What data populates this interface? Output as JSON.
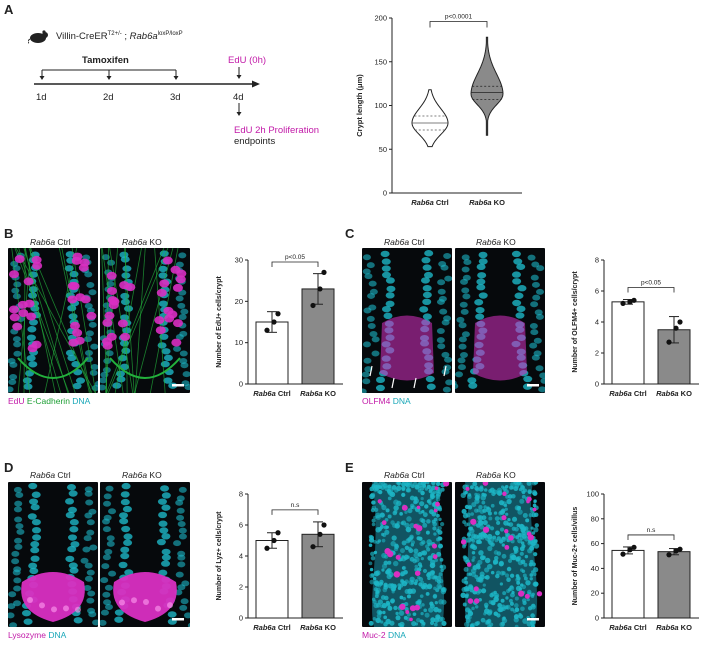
{
  "panels": {
    "A": {
      "label": "A",
      "genotype": "Villin-CreER",
      "genotype_sup": "T2+/-",
      "sep": " ; ",
      "allele": "Rab6a",
      "allele_sup": "loxP/loxP",
      "tamoxifen": "Tamoxifen",
      "edu": "EdU (0h)",
      "days": [
        "1d",
        "2d",
        "3d",
        "4d"
      ],
      "proliferation": "EdU 2h Proliferation",
      "endpoints": "endpoints"
    },
    "B": {
      "label": "B",
      "cap_a": "EdU",
      "cap_b": "E-Cadherin",
      "cap_c": "DNA"
    },
    "C": {
      "label": "C",
      "cap_a": "OLFM4",
      "cap_c": "DNA"
    },
    "D": {
      "label": "D",
      "cap_a": "Lysozyme",
      "cap_c": "DNA"
    },
    "E": {
      "label": "E",
      "cap_a": "Muc-2",
      "cap_c": "DNA"
    }
  },
  "micro_titles": {
    "gene": "Rab6a",
    "ctrl": " Ctrl",
    "ko": " KO"
  },
  "colors": {
    "magenta": "#d92fc2",
    "green": "#23b13c",
    "cyan": "#1db6c6",
    "bar_ko": "#8a8a8a"
  },
  "chart_data": [
    {
      "type": "violin",
      "panel": "A",
      "categories": [
        "Rab6a Ctrl",
        "Rab6a KO"
      ],
      "ylabel": "Crypt length (μm)",
      "ylim": [
        0,
        200
      ],
      "yticks": [
        0,
        50,
        100,
        150,
        200
      ],
      "series": [
        {
          "name": "Rab6a Ctrl",
          "min": 53,
          "q1": 72,
          "median": 80,
          "q3": 88,
          "max": 118,
          "mode": 80
        },
        {
          "name": "Rab6a KO",
          "min": 66,
          "q1": 107,
          "median": 115,
          "q3": 122,
          "max": 178,
          "mode": 113
        }
      ],
      "annotation": "p<0.0001"
    },
    {
      "type": "bar",
      "panel": "B",
      "categories": [
        "Rab6a Ctrl",
        "Rab6a KO"
      ],
      "values": [
        15,
        23
      ],
      "errors": [
        2.5,
        3.7
      ],
      "points": [
        [
          13,
          15,
          17
        ],
        [
          19,
          23,
          27
        ]
      ],
      "ylabel": "Number of EdU+ cells/crypt",
      "ylim": [
        0,
        30
      ],
      "yticks": [
        0,
        10,
        20,
        30
      ],
      "annotation": "p<0.05"
    },
    {
      "type": "bar",
      "panel": "C",
      "categories": [
        "Rab6a Ctrl",
        "Rab6a KO"
      ],
      "values": [
        5.3,
        3.5
      ],
      "errors": [
        0.15,
        0.85
      ],
      "points": [
        [
          5.2,
          5.3,
          5.4
        ],
        [
          2.7,
          3.6,
          4.0
        ]
      ],
      "ylabel": "Number of OLFM4+ cells/crypt",
      "ylim": [
        0,
        8
      ],
      "yticks": [
        0,
        2,
        4,
        6,
        8
      ],
      "annotation": "p<0.05"
    },
    {
      "type": "bar",
      "panel": "D",
      "categories": [
        "Rab6a Ctrl",
        "Rab6a KO"
      ],
      "values": [
        5.0,
        5.4
      ],
      "errors": [
        0.5,
        0.8
      ],
      "points": [
        [
          4.5,
          5.0,
          5.5
        ],
        [
          4.6,
          5.4,
          6.0
        ]
      ],
      "ylabel": "Number of Lyz+ cells/crypt",
      "ylim": [
        0,
        8
      ],
      "yticks": [
        0,
        2,
        4,
        6,
        8
      ],
      "annotation": "n.s"
    },
    {
      "type": "bar",
      "panel": "E",
      "categories": [
        "Rab6a Ctrl",
        "Rab6a KO"
      ],
      "values": [
        54.5,
        53.5
      ],
      "errors": [
        2.8,
        2.5
      ],
      "points": [
        [
          51.5,
          55,
          57
        ],
        [
          51,
          54,
          55.5
        ]
      ],
      "ylabel": "Number of Muc-2+ cells/villus",
      "ylim": [
        0,
        100
      ],
      "yticks": [
        0,
        20,
        40,
        60,
        80,
        100
      ],
      "annotation": "n.s"
    }
  ]
}
